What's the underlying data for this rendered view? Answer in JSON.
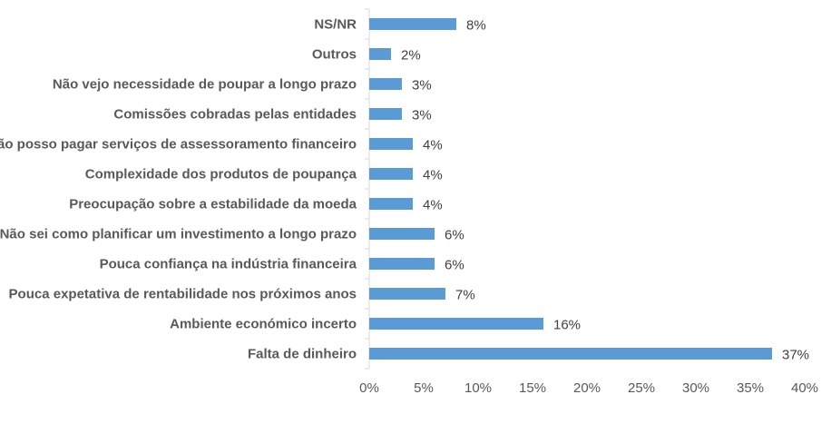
{
  "chart_data": {
    "type": "bar",
    "orientation": "horizontal",
    "categories": [
      "NS/NR",
      "Outros",
      "Não vejo necessidade de poupar a longo prazo",
      "Comissões cobradas pelas entidades",
      "Não posso pagar serviços de assessoramento financeiro",
      "Complexidade dos produtos de poupança",
      "Preocupação sobre a estabilidade da moeda",
      "Não sei como planificar um investimento a longo prazo",
      "Pouca confiança na indústria financeira",
      "Pouca expetativa de rentabilidade nos próximos anos",
      "Ambiente económico incerto",
      "Falta de dinheiro"
    ],
    "values": [
      8,
      2,
      3,
      3,
      4,
      4,
      4,
      6,
      6,
      7,
      16,
      37
    ],
    "value_labels": [
      "8%",
      "2%",
      "3%",
      "3%",
      "4%",
      "4%",
      "4%",
      "6%",
      "6%",
      "7%",
      "16%",
      "37%"
    ],
    "xlim": [
      0,
      40
    ],
    "x_ticks": [
      0,
      5,
      10,
      15,
      20,
      25,
      30,
      35,
      40
    ],
    "x_tick_labels": [
      "0%",
      "5%",
      "10%",
      "15%",
      "20%",
      "25%",
      "30%",
      "35%",
      "40%"
    ],
    "title": "",
    "xlabel": "",
    "ylabel": "",
    "grid": false,
    "legend": "none",
    "colors": {
      "bar": "#5B9BD5",
      "axis": "#D9D9D9",
      "category_text": "#595959",
      "value_text": "#404040",
      "tick_text": "#595959"
    }
  }
}
